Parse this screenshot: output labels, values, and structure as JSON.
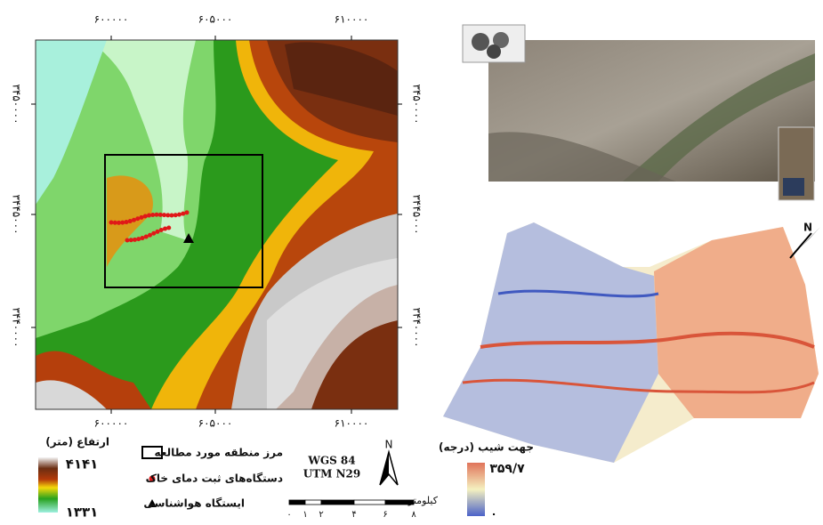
{
  "map": {
    "top_ticks": [
      "۶۰۰۰۰۰",
      "۶۰۵۰۰۰",
      "۶۱۰۰۰۰"
    ],
    "bottom_ticks": [
      "۶۰۰۰۰۰",
      "۶۰۵۰۰۰",
      "۶۱۰۰۰۰"
    ],
    "left_ticks": [
      "۳۴۵۰۰۰۰",
      "۳۴۴۵۰۰۰",
      "۳۴۴۰۰۰۰"
    ],
    "right_ticks": [
      "۳۴۵۰۰۰۰",
      "۳۴۴۵۰۰۰",
      "۳۴۴۰۰۰۰"
    ]
  },
  "legend": {
    "elevation_title": "ارتفاع (متر)",
    "elevation_max": "۴۱۴۱",
    "elevation_min": "۱۳۳۱",
    "boundary": "مرز منطقه مورد مطالعه",
    "soil_loggers": "دستگاه‌های ثبت دمای خاک",
    "weather_station": "ایستگاه هواشناسی",
    "datum": "WGS 84",
    "projection": "UTM N29",
    "north": "N",
    "scale_unit": "کیلومتر",
    "scale_ticks": [
      "۰",
      "۱",
      "۲",
      "۴",
      "۶",
      "۸"
    ],
    "aspect_title": "جهت شیب (درجه)",
    "aspect_max": "۳۵۹/۷",
    "aspect_min": "۰"
  },
  "surface_north": "N"
}
